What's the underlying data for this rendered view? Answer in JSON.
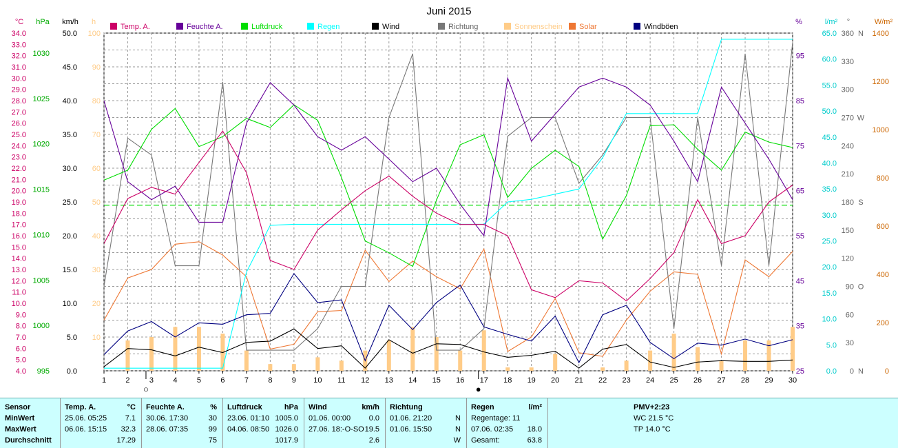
{
  "chart_data": {
    "type": "line",
    "title": "Juni 2015",
    "x": [
      1,
      2,
      3,
      4,
      5,
      6,
      7,
      8,
      9,
      10,
      11,
      12,
      13,
      14,
      15,
      16,
      17,
      18,
      19,
      20,
      21,
      22,
      23,
      24,
      25,
      26,
      27,
      28,
      29,
      30
    ],
    "xlim": [
      1,
      30
    ],
    "legend_placement": "top",
    "grid": true,
    "axes": [
      {
        "unit": "°C",
        "color": "#cc0066",
        "min": 4.0,
        "max": 34.0,
        "ticks": [
          "4.0",
          "5.0",
          "6.0",
          "7.0",
          "8.0",
          "9.0",
          "10.0",
          "11.0",
          "12.0",
          "13.0",
          "14.0",
          "15.0",
          "16.0",
          "17.0",
          "18.0",
          "19.0",
          "20.0",
          "21.0",
          "22.0",
          "23.0",
          "24.0",
          "25.0",
          "26.0",
          "27.0",
          "28.0",
          "29.0",
          "30.0",
          "31.0",
          "32.0",
          "33.0",
          "34.0"
        ]
      },
      {
        "unit": "hPa",
        "color": "#00aa00",
        "min": 995,
        "max": 1032.2,
        "ticks": [
          "995",
          "1000",
          "1005",
          "1010",
          "1015",
          "1020",
          "1025",
          "1030"
        ]
      },
      {
        "unit": "km/h",
        "color": "#000000",
        "min": 0,
        "max": 50,
        "ticks": [
          "0.0",
          "5.0",
          "10.0",
          "15.0",
          "20.0",
          "25.0",
          "30.0",
          "35.0",
          "40.0",
          "45.0",
          "50.0"
        ]
      },
      {
        "unit": "h",
        "color": "#ffcc88",
        "min": 0,
        "max": 100,
        "ticks": [
          "10",
          "20",
          "30",
          "40",
          "50",
          "60",
          "70",
          "80",
          "90",
          "100"
        ]
      },
      {
        "unit": "%",
        "color": "#660099",
        "min": 25,
        "max": 100,
        "ticks": [
          "25",
          "35",
          "45",
          "55",
          "65",
          "75",
          "85",
          "95"
        ]
      },
      {
        "unit": "l/m²",
        "color": "#00cccc",
        "min": 0,
        "max": 65,
        "ticks": [
          "0.0",
          "5.0",
          "10.0",
          "15.0",
          "20.0",
          "25.0",
          "30.0",
          "35.0",
          "40.0",
          "45.0",
          "50.0",
          "55.0",
          "60.0",
          "65.0"
        ]
      },
      {
        "unit": "°",
        "color": "#666666",
        "min": 0,
        "max": 360,
        "ticks": [
          "0",
          "30",
          "60",
          "90",
          "120",
          "150",
          "180",
          "210",
          "240",
          "270",
          "300",
          "330",
          "360"
        ],
        "tick_labels": {
          "0": "N",
          "90": "O",
          "180": "S",
          "270": "W",
          "360": "N"
        }
      },
      {
        "unit": "W/m²",
        "color": "#cc6600",
        "min": 0,
        "max": 1400,
        "ticks": [
          "0",
          "200",
          "400",
          "600",
          "800",
          "1000",
          "1200",
          "1400"
        ]
      }
    ],
    "series": [
      {
        "name": "Temp. A.",
        "axis": 0,
        "color": "#cc0066",
        "values": [
          15.3,
          19.3,
          20.3,
          19.7,
          22.5,
          25.3,
          21.6,
          13.8,
          13.0,
          16.5,
          18.3,
          20.0,
          21.3,
          19.5,
          18.0,
          17.0,
          17.0,
          16.0,
          11.2,
          10.5,
          12.0,
          11.8,
          10.2,
          12.2,
          14.5,
          19.2,
          15.3,
          16.0,
          19.0,
          20.5
        ]
      },
      {
        "name": "Feuchte A.",
        "axis": 4,
        "color": "#660099",
        "values": [
          85,
          67,
          63,
          66,
          58,
          58,
          80,
          89,
          84,
          77,
          74,
          77,
          72,
          67,
          70,
          62,
          55,
          90,
          76,
          82,
          88,
          90,
          88,
          84,
          76,
          67,
          88,
          80,
          72,
          63
        ]
      },
      {
        "name": "Luftdruck",
        "axis": 1,
        "color": "#00dd00",
        "values": [
          1016.0,
          1017.1,
          1021.6,
          1023.9,
          1019.7,
          1020.8,
          1022.8,
          1021.8,
          1024.3,
          1022.6,
          1016.3,
          1009.3,
          1008.0,
          1006.5,
          1013.8,
          1019.9,
          1021.0,
          1014.1,
          1017.3,
          1019.3,
          1017.5,
          1009.5,
          1014.3,
          1022.0,
          1022.1,
          1019.4,
          1017.1,
          1021.3,
          1020.2,
          1019.6
        ]
      },
      {
        "name": "Regen",
        "axis": 5,
        "color": "#00ffff",
        "values": [
          0.5,
          0.5,
          0.5,
          0.5,
          0.5,
          0.5,
          19.0,
          28.0,
          28.2,
          28.2,
          28.2,
          28.2,
          28.2,
          28.2,
          28.2,
          28.2,
          28.2,
          32.5,
          33.0,
          34.0,
          35.0,
          41.0,
          49.5,
          49.5,
          49.5,
          49.5,
          63.8,
          63.8,
          63.8,
          63.8
        ]
      },
      {
        "name": "Wind",
        "axis": 2,
        "color": "#000000",
        "values": [
          0.6,
          3.3,
          3.1,
          2.2,
          3.5,
          2.7,
          4.2,
          4.4,
          6.2,
          3.3,
          3.7,
          0.4,
          4.6,
          2.6,
          4.0,
          3.9,
          2.8,
          2.0,
          2.3,
          2.9,
          0.4,
          3.2,
          3.9,
          1.3,
          0.5,
          1.3,
          1.5,
          1.4,
          1.4,
          1.6
        ]
      },
      {
        "name": "Richtung",
        "axis": 6,
        "color": "#777777",
        "values": [
          90,
          248,
          230,
          112,
          112,
          308,
          22,
          22,
          22,
          45,
          90,
          90,
          270,
          338,
          22,
          22,
          45,
          250,
          270,
          270,
          200,
          230,
          270,
          270,
          45,
          270,
          112,
          338,
          112,
          350
        ]
      },
      {
        "name": "Sonnenschein",
        "axis": 3,
        "color": "#ffcc88",
        "values": [
          0,
          9,
          10,
          13,
          13,
          11,
          6,
          2,
          2,
          4,
          3,
          6,
          9,
          13,
          10,
          6,
          12,
          1,
          1,
          5,
          0,
          1,
          3,
          6,
          11,
          7,
          3,
          9,
          9,
          13
        ]
      },
      {
        "name": "Solar",
        "axis": 7,
        "color": "#ee7733",
        "values": [
          210,
          385,
          420,
          525,
          535,
          480,
          390,
          90,
          110,
          245,
          250,
          500,
          370,
          455,
          390,
          340,
          505,
          80,
          140,
          300,
          75,
          60,
          210,
          330,
          410,
          400,
          70,
          460,
          390,
          495
        ]
      },
      {
        "name": "Windböen",
        "axis": 2,
        "color": "#000080",
        "values": [
          2.4,
          5.9,
          7.3,
          5.0,
          7.1,
          6.9,
          8.3,
          8.5,
          14.4,
          10.1,
          10.5,
          1.5,
          9.7,
          6.1,
          10.1,
          12.7,
          6.5,
          5.4,
          4.4,
          8.1,
          1.2,
          8.3,
          9.7,
          4.2,
          1.8,
          4.1,
          3.8,
          4.7,
          3.7,
          4.6
        ]
      }
    ],
    "threshold_line": {
      "axis": 1,
      "value": 1013.25,
      "color": "#00dd00"
    },
    "moon_markers": [
      {
        "x": 3,
        "symbol": "○"
      },
      {
        "x": 17,
        "symbol": "●"
      }
    ]
  },
  "stats": {
    "sensor": {
      "title": "Sensor",
      "rows": [
        "MinWert",
        "MaxWert",
        "Durchschnitt"
      ]
    },
    "temp": {
      "title": "Temp. A.",
      "unit": "°C",
      "min": {
        "time": "25.06.  05:25",
        "value": "7.1"
      },
      "max": {
        "time": "06.06.  15:15",
        "value": "32.3"
      },
      "avg": "17.29"
    },
    "feuchte": {
      "title": "Feuchte A.",
      "unit": "%",
      "min": {
        "time": "30.06.  17:30",
        "value": "30"
      },
      "max": {
        "time": "28.06.  07:35",
        "value": "99"
      },
      "avg": "75"
    },
    "luftdruck": {
      "title": "Luftdruck",
      "unit": "hPa",
      "min": {
        "time": "23.06.  01:10",
        "value": "1005.0"
      },
      "max": {
        "time": "04.06.  08:50",
        "value": "1026.0"
      },
      "avg": "1017.9"
    },
    "wind": {
      "title": "Wind",
      "unit": "km/h",
      "min": {
        "time": "01.06.  00:00",
        "value": "0.0"
      },
      "max": {
        "time": "27.06.  18:-O-SO",
        "value": "19.5"
      },
      "avg": "2.6"
    },
    "richtung": {
      "title": "Richtung",
      "min": {
        "time": "01.06.  21:20",
        "value": "N"
      },
      "max": {
        "time": "01.06.  15:50",
        "value": "N"
      },
      "avg": "W"
    },
    "regen": {
      "title": "Regen",
      "unit": "l/m²",
      "tage": "Regentage: 11",
      "max": {
        "time": "07.06.  02:35",
        "value": "18.0"
      },
      "gesamt_label": "Gesamt:",
      "gesamt": "63.8"
    },
    "pmv": {
      "title": "PMV+2:23",
      "wc": "WC 21.5 °C",
      "tp": "TP 14.0 °C"
    }
  }
}
